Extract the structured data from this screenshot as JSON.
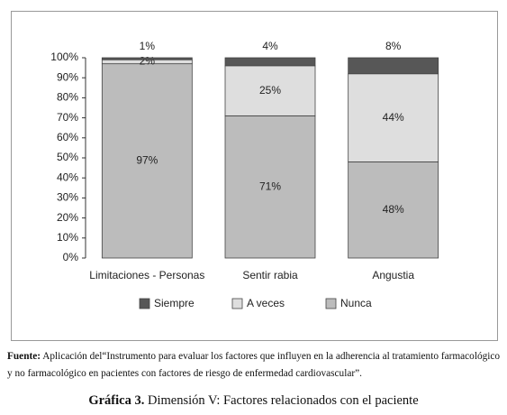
{
  "chart_data": {
    "type": "stacked_bar",
    "categories": [
      "Limitaciones - Personas",
      "Sentir rabia",
      "Angustia"
    ],
    "series": [
      {
        "name": "Siempre",
        "color": "#575757",
        "values": [
          1,
          4,
          8
        ],
        "value_labels": [
          "1%",
          "4%",
          "8%"
        ]
      },
      {
        "name": "A veces",
        "color": "#dedede",
        "values": [
          2,
          25,
          44
        ],
        "value_labels": [
          "2%",
          "25%",
          "44%"
        ]
      },
      {
        "name": "Nunca",
        "color": "#bcbcbc",
        "values": [
          97,
          71,
          48
        ],
        "value_labels": [
          "97%",
          "71%",
          "48%"
        ]
      }
    ],
    "ylim": [
      0,
      100
    ],
    "yticks": [
      {
        "value": 0,
        "label": "0%"
      },
      {
        "value": 10,
        "label": "10%"
      },
      {
        "value": 20,
        "label": "20%"
      },
      {
        "value": 30,
        "label": "30%"
      },
      {
        "value": 40,
        "label": "40%"
      },
      {
        "value": 50,
        "label": "50%"
      },
      {
        "value": 60,
        "label": "60%"
      },
      {
        "value": 70,
        "label": "70%"
      },
      {
        "value": 80,
        "label": "80%"
      },
      {
        "value": 90,
        "label": "90%"
      },
      {
        "value": 100,
        "label": "100%"
      }
    ],
    "grid": false,
    "legend": "bottom"
  },
  "source": {
    "label": "Fuente:",
    "text": "Aplicación del“Instrumento para evaluar los factores que influyen en la adherencia al tratamiento farmacológico y no farmacológico en pacientes con factores de riesgo de enfermedad cardiovascular”."
  },
  "caption": {
    "label": "Gráfica 3.",
    "text": "Dimensión V:  Factores relacionados con el paciente"
  }
}
